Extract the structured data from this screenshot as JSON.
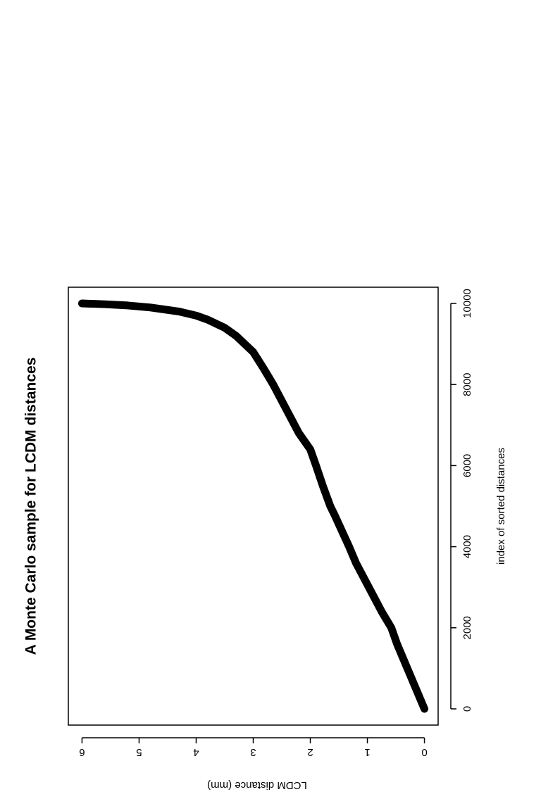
{
  "chart_data": {
    "type": "line",
    "title": "A Monte Carlo sample for LCDM distances",
    "x_label": "index of sorted distances",
    "y_label": "LCDM distance (mm)",
    "x": [
      0,
      500,
      1000,
      1600,
      2000,
      2400,
      2800,
      3200,
      3600,
      4000,
      4400,
      4800,
      5000,
      5500,
      6000,
      6400,
      6800,
      7200,
      7600,
      8000,
      8400,
      8800,
      9200,
      9400,
      9600,
      9700,
      9800,
      9900,
      9950,
      9980,
      10000
    ],
    "values": [
      0,
      0.15,
      0.3,
      0.48,
      0.58,
      0.75,
      0.9,
      1.05,
      1.2,
      1.32,
      1.45,
      1.58,
      1.65,
      1.78,
      1.9,
      2.0,
      2.2,
      2.35,
      2.5,
      2.65,
      2.82,
      3.0,
      3.3,
      3.5,
      3.8,
      4.0,
      4.3,
      4.8,
      5.2,
      5.6,
      6.0
    ],
    "color": "#000000",
    "xlim": [
      -400,
      10400
    ],
    "xticks": [
      0,
      2000,
      4000,
      6000,
      8000,
      10000
    ],
    "ylim": [
      -0.24,
      6.24
    ],
    "yticks": [
      0,
      1,
      2,
      3,
      4,
      5,
      6
    ],
    "rotation": -90
  }
}
